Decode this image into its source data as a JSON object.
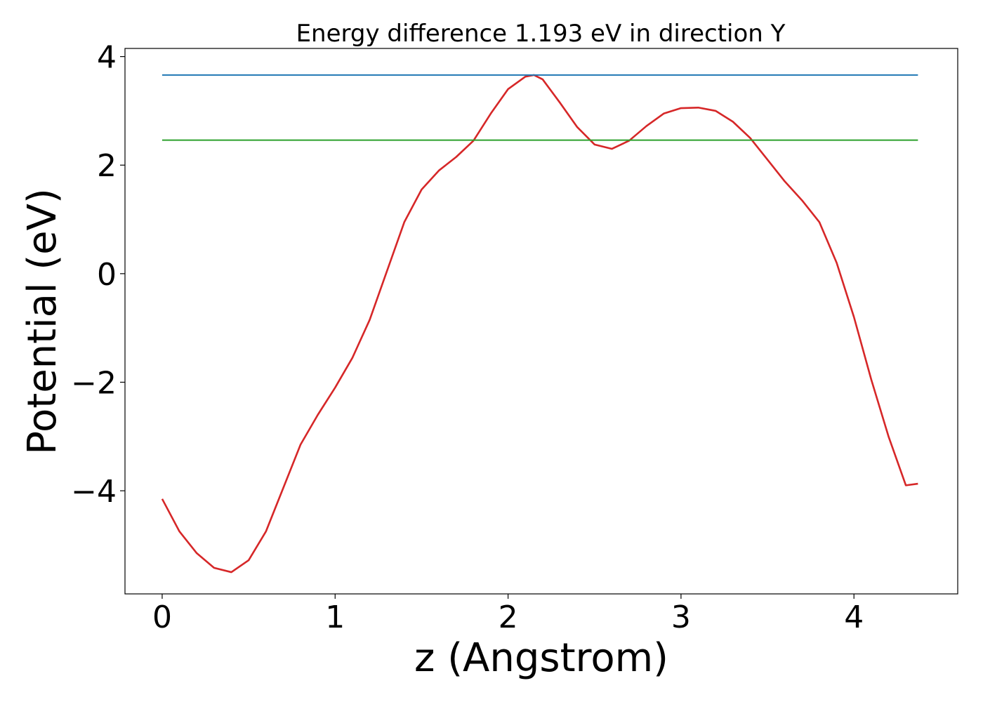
{
  "chart_data": {
    "type": "line",
    "title": "Energy difference 1.193 eV in direction Y",
    "xlabel": "z (Angstrom)",
    "ylabel": "Potential (eV)",
    "xlim": [
      -0.215,
      4.6
    ],
    "ylim": [
      -5.9,
      4.15
    ],
    "xticks": [
      0,
      1,
      2,
      3,
      4
    ],
    "yticks": [
      -4,
      -2,
      0,
      2,
      4
    ],
    "xtick_labels": [
      "0",
      "1",
      "2",
      "3",
      "4"
    ],
    "ytick_labels": [
      "−4",
      "−2",
      "0",
      "2",
      "4"
    ],
    "grid": false,
    "series": [
      {
        "color": "#d62728",
        "style": "solid",
        "x": [
          0,
          0.1,
          0.2,
          0.3,
          0.4,
          0.5,
          0.6,
          0.7,
          0.8,
          0.9,
          1.0,
          1.1,
          1.2,
          1.3,
          1.4,
          1.5,
          1.6,
          1.7,
          1.8,
          1.9,
          2.0,
          2.1,
          2.15,
          2.2,
          2.3,
          2.4,
          2.5,
          2.6,
          2.7,
          2.8,
          2.9,
          3.0,
          3.1,
          3.2,
          3.3,
          3.4,
          3.5,
          3.6,
          3.7,
          3.8,
          3.9,
          4.0,
          4.1,
          4.2,
          4.3,
          4.37
        ],
        "y": [
          -4.15,
          -4.75,
          -5.15,
          -5.42,
          -5.5,
          -5.28,
          -4.75,
          -3.95,
          -3.15,
          -2.6,
          -2.1,
          -1.55,
          -0.85,
          0.05,
          0.95,
          1.55,
          1.9,
          2.15,
          2.45,
          2.95,
          3.4,
          3.63,
          3.66,
          3.58,
          3.15,
          2.7,
          2.38,
          2.3,
          2.45,
          2.72,
          2.95,
          3.05,
          3.06,
          3.0,
          2.8,
          2.5,
          2.1,
          1.7,
          1.35,
          0.95,
          0.2,
          -0.8,
          -1.95,
          -3.0,
          -3.9,
          -3.87
        ]
      },
      {
        "color": "#1f77b4",
        "style": "solid",
        "x": [
          0,
          4.37
        ],
        "y": [
          3.66,
          3.66
        ]
      },
      {
        "color": "#2ca02c",
        "style": "solid",
        "x": [
          0,
          4.37
        ],
        "y": [
          2.46,
          2.46
        ]
      }
    ]
  }
}
